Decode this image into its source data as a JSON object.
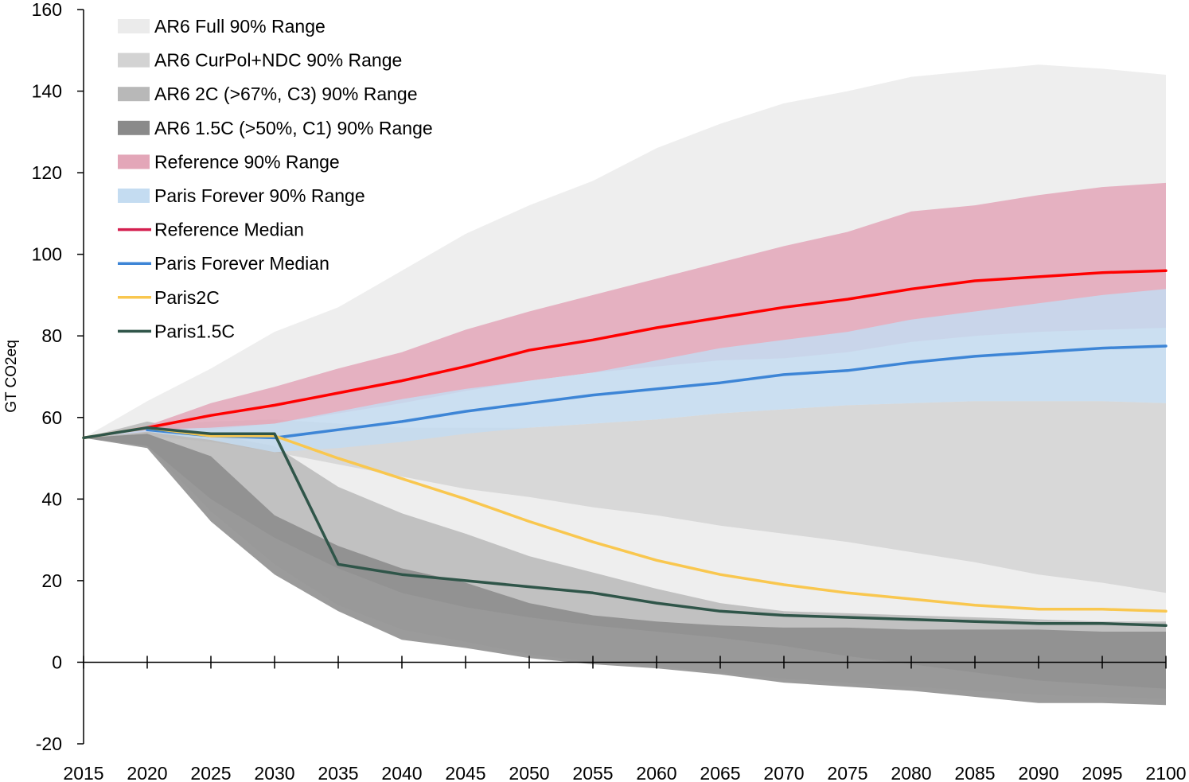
{
  "chart_data": {
    "type": "area",
    "title": "",
    "xlabel": "",
    "ylabel": "GT CO2eq",
    "xlim": [
      2015,
      2100
    ],
    "ylim": [
      -20,
      160
    ],
    "x_ticks": [
      2015,
      2020,
      2025,
      2030,
      2035,
      2040,
      2045,
      2050,
      2055,
      2060,
      2065,
      2070,
      2075,
      2080,
      2085,
      2090,
      2095,
      2100
    ],
    "y_ticks": [
      -20,
      0,
      20,
      40,
      60,
      80,
      100,
      120,
      140,
      160
    ],
    "legend_position": "top-left",
    "ranges": [
      {
        "name": "AR6 Full 90% Range",
        "color": "#ebebeb",
        "x": [
          2015,
          2020,
          2025,
          2030,
          2035,
          2040,
          2045,
          2050,
          2055,
          2060,
          2065,
          2070,
          2075,
          2080,
          2085,
          2090,
          2095,
          2100
        ],
        "upper": [
          55,
          64,
          72,
          81,
          87,
          96,
          105,
          112,
          118,
          126,
          132,
          137,
          140,
          143.5,
          145,
          146.5,
          145.5,
          144
        ],
        "lower": [
          55,
          53,
          37,
          24,
          14,
          8,
          5,
          2,
          0,
          -1,
          -2.5,
          -4,
          -5,
          -6,
          -7,
          -8,
          -8.5,
          -9
        ]
      },
      {
        "name": "AR6 CurPol+NDC 90% Range",
        "color": "#d3d3d3",
        "x": [
          2015,
          2020,
          2025,
          2030,
          2035,
          2040,
          2045,
          2050,
          2055,
          2060,
          2065,
          2070,
          2075,
          2080,
          2085,
          2090,
          2095,
          2100
        ],
        "upper": [
          55,
          58,
          59,
          59.5,
          58.5,
          57.5,
          57.5,
          57.5,
          58.5,
          59.5,
          61,
          62,
          63,
          63.5,
          64,
          64,
          64,
          63.5
        ],
        "lower": [
          55,
          55.5,
          54,
          51.5,
          48.5,
          45.5,
          42.5,
          40.5,
          38,
          36,
          33.5,
          31.5,
          29.5,
          27,
          24.5,
          21.5,
          19.5,
          17
        ]
      },
      {
        "name": "AR6 2C (>67%, C3) 90% Range",
        "color": "#b8b8b8",
        "x": [
          2015,
          2020,
          2025,
          2030,
          2035,
          2040,
          2045,
          2050,
          2055,
          2060,
          2065,
          2070,
          2075,
          2080,
          2085,
          2090,
          2095,
          2100
        ],
        "upper": [
          55,
          59,
          56,
          53,
          43,
          36.5,
          31.5,
          26,
          22,
          18,
          14.5,
          12.5,
          12,
          11.5,
          11,
          10.5,
          10,
          10
        ],
        "lower": [
          55,
          53,
          40,
          30.5,
          23,
          17,
          13.5,
          11,
          9,
          7.5,
          6,
          4,
          1.5,
          -0.5,
          -2.5,
          -4.5,
          -5.5,
          -6.5
        ]
      },
      {
        "name": "AR6 1.5C (>50%, C1) 90% Range",
        "color": "#8a8a8a",
        "x": [
          2015,
          2020,
          2025,
          2030,
          2035,
          2040,
          2045,
          2050,
          2055,
          2060,
          2065,
          2070,
          2075,
          2080,
          2085,
          2090,
          2095,
          2100
        ],
        "upper": [
          55,
          56,
          50.5,
          36,
          28.5,
          23,
          19.5,
          14.5,
          11.5,
          10,
          9,
          8.5,
          8.5,
          8,
          8,
          8,
          7.5,
          7.5
        ],
        "lower": [
          55,
          52.5,
          34.5,
          21.5,
          12.5,
          5.5,
          3.5,
          1,
          -0.5,
          -1.5,
          -3,
          -5,
          -6,
          -7,
          -8.5,
          -10,
          -10,
          -10.5
        ]
      },
      {
        "name": "Reference 90% Range",
        "color": "#e3a6b8",
        "x": [
          2015,
          2020,
          2025,
          2030,
          2035,
          2040,
          2045,
          2050,
          2055,
          2060,
          2065,
          2070,
          2075,
          2080,
          2085,
          2090,
          2095,
          2100
        ],
        "upper": [
          55,
          58,
          63.5,
          67.5,
          72,
          76,
          81.5,
          86,
          90,
          94,
          98,
          102,
          105.5,
          110.5,
          112,
          114.5,
          116.5,
          117.5
        ],
        "lower": [
          55,
          56.5,
          57,
          58.5,
          61,
          63.5,
          66.5,
          69,
          71,
          72.5,
          74,
          74.5,
          76,
          78.5,
          80,
          81,
          81.5,
          82
        ]
      },
      {
        "name": "Paris Forever 90% Range",
        "color": "#c4dcf1",
        "x": [
          2015,
          2020,
          2025,
          2030,
          2035,
          2040,
          2045,
          2050,
          2055,
          2060,
          2065,
          2070,
          2075,
          2080,
          2085,
          2090,
          2095,
          2100
        ],
        "upper": [
          55,
          57,
          57.5,
          58.5,
          61.5,
          64.5,
          67,
          69,
          71,
          74,
          77,
          79,
          81,
          84,
          86,
          88,
          90,
          91.5
        ],
        "lower": [
          55,
          56.5,
          54.5,
          51.5,
          52.5,
          54,
          56,
          57.5,
          58.5,
          59.5,
          61,
          62,
          63,
          63.5,
          64,
          64,
          64,
          63.5
        ]
      }
    ],
    "series": [
      {
        "name": "Reference Median",
        "color": "#ff0000",
        "legend_color": "#d41f4f",
        "x": [
          2020,
          2025,
          2030,
          2035,
          2040,
          2045,
          2050,
          2055,
          2060,
          2065,
          2070,
          2075,
          2080,
          2085,
          2090,
          2095,
          2100
        ],
        "values": [
          57.5,
          60.5,
          63,
          66,
          69,
          72.5,
          76.5,
          79,
          82,
          84.5,
          87,
          89,
          91.5,
          93.5,
          94.5,
          95.5,
          96
        ]
      },
      {
        "name": "Paris Forever Median",
        "color": "#3d85d6",
        "x": [
          2020,
          2025,
          2030,
          2035,
          2040,
          2045,
          2050,
          2055,
          2060,
          2065,
          2070,
          2075,
          2080,
          2085,
          2090,
          2095,
          2100
        ],
        "values": [
          57,
          55.5,
          55,
          57,
          59,
          61.5,
          63.5,
          65.5,
          67,
          68.5,
          70.5,
          71.5,
          73.5,
          75,
          76,
          77,
          77.5
        ]
      },
      {
        "name": "Paris2C",
        "color": "#f9c74f",
        "x": [
          2015,
          2020,
          2025,
          2030,
          2035,
          2040,
          2045,
          2050,
          2055,
          2060,
          2065,
          2070,
          2075,
          2080,
          2085,
          2090,
          2095,
          2100
        ],
        "values": [
          55,
          57.5,
          55.5,
          55.5,
          50,
          45,
          40,
          34.5,
          29.5,
          25,
          21.5,
          19,
          17,
          15.5,
          14,
          13,
          13,
          12.5
        ]
      },
      {
        "name": "Paris1.5C",
        "color": "#2f5549",
        "x": [
          2015,
          2020,
          2025,
          2030,
          2030,
          2035,
          2040,
          2045,
          2050,
          2055,
          2060,
          2065,
          2070,
          2075,
          2080,
          2085,
          2090,
          2095,
          2100
        ],
        "values": [
          55,
          57.5,
          56,
          56,
          56,
          24,
          21.5,
          20,
          18.5,
          17,
          14.5,
          12.5,
          11.5,
          11,
          10.5,
          10,
          9.5,
          9.5,
          9
        ]
      }
    ]
  }
}
